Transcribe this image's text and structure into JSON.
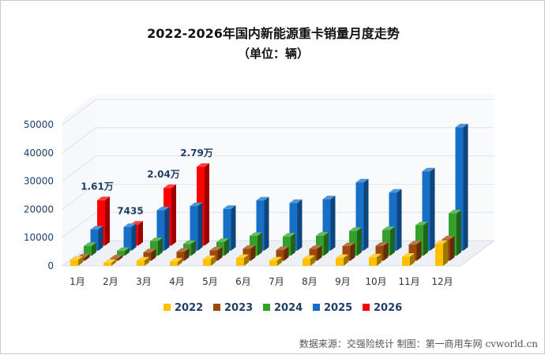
{
  "chart_data": {
    "type": "bar",
    "title": "2022-2026年国内新能源重卡销量月度走势",
    "subtitle": "（单位：辆）",
    "categories": [
      "1月",
      "2月",
      "3月",
      "4月",
      "5月",
      "6月",
      "7月",
      "8月",
      "9月",
      "10月",
      "11月",
      "12月"
    ],
    "yticks": [
      0,
      10000,
      20000,
      30000,
      40000,
      50000
    ],
    "ylim": [
      0,
      52000
    ],
    "series": [
      {
        "name": "2022",
        "color": "#ffc000",
        "values": [
          2100,
          1100,
          1900,
          1500,
          2400,
          2800,
          1900,
          2500,
          2800,
          3000,
          3200,
          7800
        ]
      },
      {
        "name": "2023",
        "color": "#9e480e",
        "values": [
          1200,
          900,
          3000,
          3200,
          3700,
          4300,
          3800,
          4200,
          5200,
          5300,
          5800,
          7600
        ]
      },
      {
        "name": "2024",
        "color": "#33a02c",
        "values": [
          3500,
          1700,
          5200,
          4200,
          4900,
          7000,
          6800,
          7100,
          8800,
          9100,
          10800,
          15000
        ]
      },
      {
        "name": "2025",
        "color": "#1670c8",
        "values": [
          7500,
          8400,
          14300,
          15800,
          14800,
          17800,
          16900,
          18200,
          24200,
          20600,
          28100,
          43700
        ]
      },
      {
        "name": "2026",
        "color": "#ff0000",
        "values": [
          16100,
          7435,
          20400,
          27900,
          null,
          null,
          null,
          null,
          null,
          null,
          null,
          null
        ]
      }
    ],
    "annotations": [
      {
        "month_index": 0,
        "series": "2026",
        "text": "1.61万"
      },
      {
        "month_index": 1,
        "series": "2026",
        "text": "7435"
      },
      {
        "month_index": 2,
        "series": "2026",
        "text": "2.04万"
      },
      {
        "month_index": 3,
        "series": "2026",
        "text": "2.79万"
      }
    ],
    "legend_position": "bottom",
    "grid": true
  },
  "source_text": "数据来源：交强险统计  制图：第一商用车网 cvworld.cn"
}
